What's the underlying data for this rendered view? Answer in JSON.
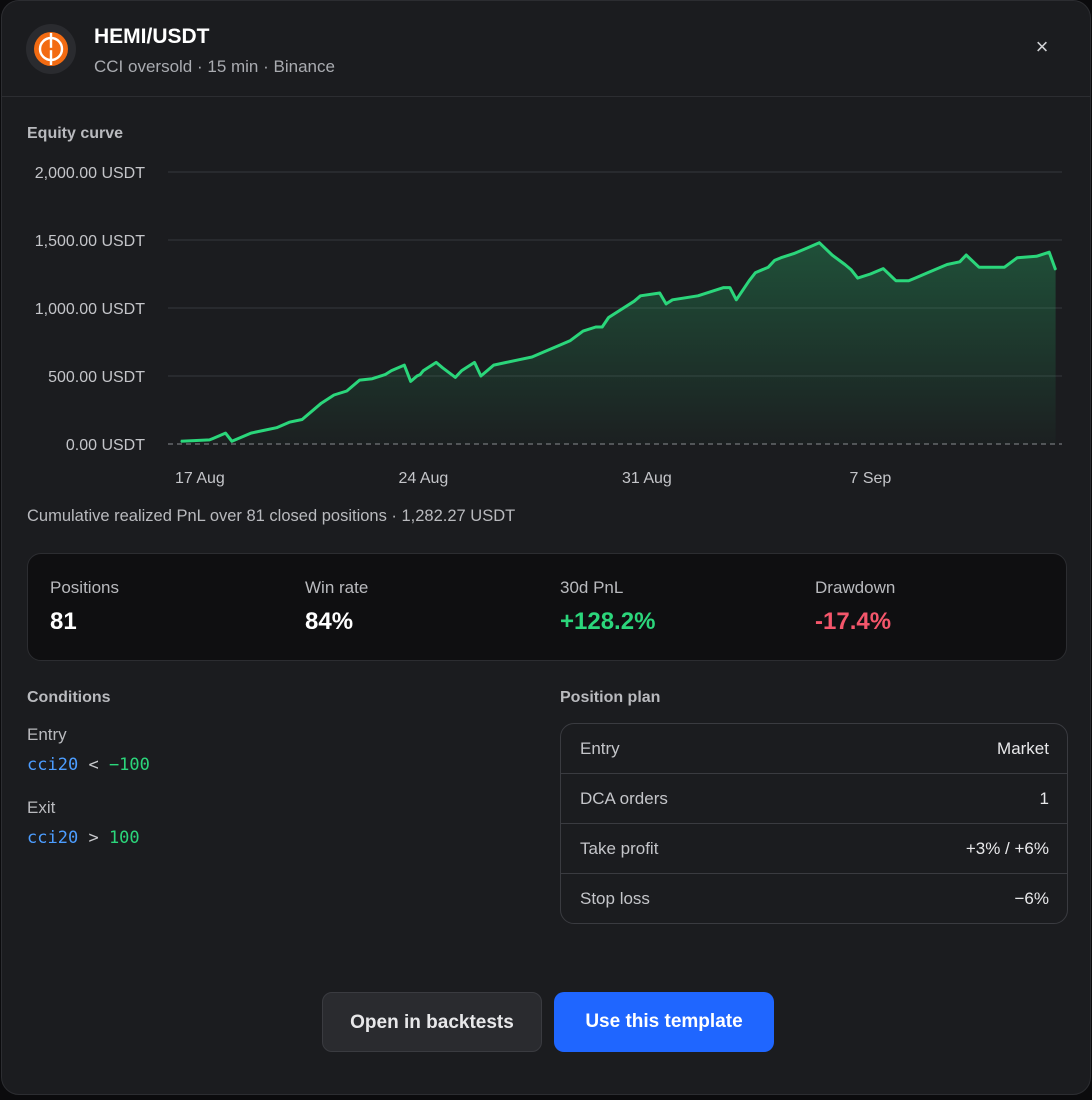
{
  "header": {
    "title": "HEMI/USDT",
    "subtitle": "CCI oversold · 15 min · Binance",
    "close_label": "×"
  },
  "equity": {
    "section_label": "Equity curve",
    "caption": "Cumulative realized PnL over 81 closed positions · 1,282.27 USDT"
  },
  "chart_data": {
    "type": "area",
    "title": "",
    "xlabel": "",
    "ylabel": "",
    "ylim": [
      0,
      2000
    ],
    "y_ticks": [
      "0.00 USDT",
      "500.00 USDT",
      "1,000.00 USDT",
      "1,500.00 USDT",
      "2,000.00 USDT"
    ],
    "x_ticks": [
      "17 Aug",
      "24 Aug",
      "31 Aug",
      "7 Sep"
    ],
    "x_tick_days": [
      1,
      8,
      15,
      22
    ],
    "grid": true,
    "line_color": "#2bd67b",
    "series": [
      {
        "x": [
          0.4,
          1.3,
          1.4,
          1.8,
          2.0,
          2.6,
          3.0,
          3.4,
          3.8,
          4.2,
          4.8,
          5.2,
          5.6,
          6.0,
          6.4,
          6.8,
          7.0,
          7.4,
          7.6,
          7.8,
          7.9,
          8.0,
          8.4,
          8.6,
          9.0,
          9.2,
          9.6,
          9.8,
          10.2,
          10.6,
          11.0,
          11.4,
          11.8,
          12.2,
          12.6,
          13.0,
          13.4,
          13.6,
          13.8,
          14.6,
          14.8,
          15.4,
          15.6,
          15.8,
          16.6,
          17.0,
          17.4,
          17.6,
          17.8,
          18.2,
          18.4,
          18.8,
          19.0,
          19.2,
          19.6,
          20.0,
          20.4,
          20.8,
          21.2,
          21.4,
          21.6,
          22.0,
          22.4,
          22.8,
          23.2,
          23.4,
          23.8,
          24.4,
          24.8,
          25.0,
          25.4,
          25.8,
          26.2,
          26.6,
          27.2,
          27.6,
          27.8
        ],
        "y": [
          20,
          30,
          40,
          80,
          20,
          80,
          100,
          120,
          160,
          180,
          300,
          360,
          390,
          470,
          480,
          510,
          540,
          580,
          460,
          500,
          510,
          540,
          600,
          560,
          490,
          540,
          600,
          500,
          580,
          600,
          620,
          640,
          680,
          720,
          760,
          830,
          860,
          860,
          930,
          1050,
          1090,
          1110,
          1030,
          1060,
          1090,
          1120,
          1150,
          1150,
          1060,
          1200,
          1260,
          1300,
          1350,
          1370,
          1400,
          1440,
          1480,
          1390,
          1320,
          1280,
          1220,
          1250,
          1290,
          1200,
          1200,
          1220,
          1260,
          1320,
          1340,
          1390,
          1300,
          1300,
          1300,
          1370,
          1380,
          1410,
          1280
        ]
      }
    ]
  },
  "stats": [
    {
      "label": "Positions",
      "value": "81",
      "color": "#ffffff"
    },
    {
      "label": "Win rate",
      "value": "84%",
      "color": "#ffffff"
    },
    {
      "label": "30d PnL",
      "value": "+128.2%",
      "color": "#2bd67b"
    },
    {
      "label": "Drawdown",
      "value": "-17.4%",
      "color": "#f4566b"
    }
  ],
  "conditions": {
    "section_label": "Conditions",
    "entry_label": "Entry",
    "entry_var": "cci20",
    "entry_op": "<",
    "entry_value": "−100",
    "exit_label": "Exit",
    "exit_var": "cci20",
    "exit_op": ">",
    "exit_value": "100"
  },
  "plan": {
    "section_label": "Position plan",
    "rows": [
      {
        "label": "Entry",
        "value": "Market"
      },
      {
        "label": "DCA orders",
        "value": "1"
      },
      {
        "label": "Take profit",
        "value": "+3% / +6%"
      },
      {
        "label": "Stop loss",
        "value": "−6%"
      }
    ]
  },
  "actions": {
    "secondary_label": "Open in backtests",
    "primary_label": "Use this template"
  },
  "colors": {
    "accent": "#1f66ff",
    "positive": "#2bd67b",
    "negative": "#f4566b",
    "logo": "#f36b12"
  },
  "icons": {
    "logo": "hemi-logo-icon",
    "close": "close-icon"
  }
}
